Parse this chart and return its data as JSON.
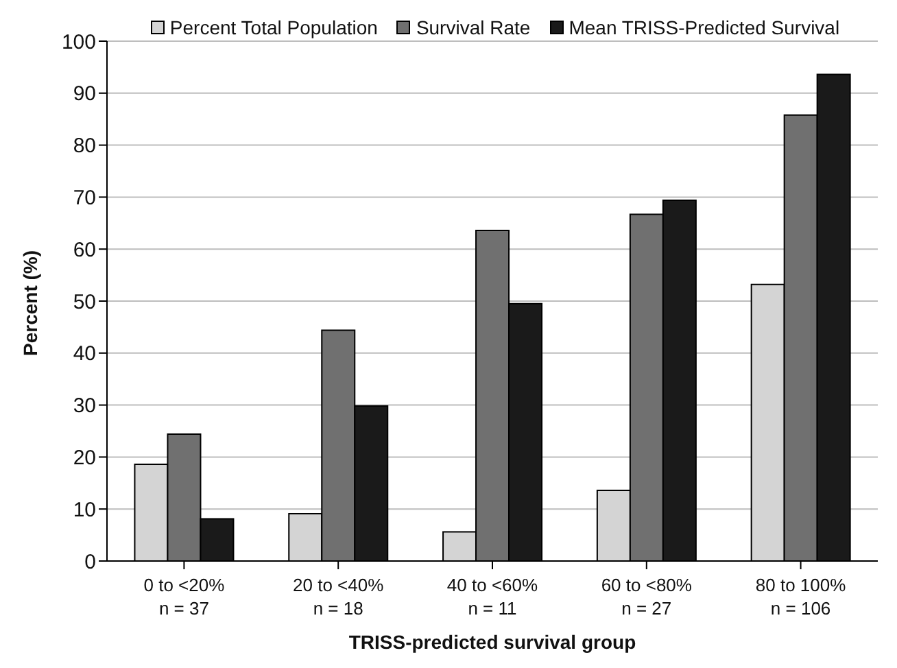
{
  "chart_data": {
    "type": "bar",
    "xlabel": "TRISS-predicted survival group",
    "ylabel": "Percent (%)",
    "categories": [
      "0 to <20%\nn = 37",
      "20 to <40%\nn = 18",
      "40 to <60%\nn = 11",
      "60 to <80%\nn = 27",
      "80 to 100%\nn = 106"
    ],
    "series": [
      {
        "name": "Percent Total Population",
        "color": "#d4d4d4",
        "values": [
          18.6,
          9.1,
          5.6,
          13.6,
          53.2
        ]
      },
      {
        "name": "Survival Rate",
        "color": "#707070",
        "values": [
          24.4,
          44.4,
          63.6,
          66.7,
          85.8
        ]
      },
      {
        "name": "Mean TRISS-Predicted Survival",
        "color": "#1a1a1a",
        "values": [
          8.1,
          29.8,
          49.5,
          69.4,
          93.6
        ]
      }
    ],
    "ylim": [
      0,
      100
    ],
    "yticks": [
      0,
      10,
      20,
      30,
      40,
      50,
      60,
      70,
      80,
      90,
      100
    ],
    "grid": "y",
    "legend": "top"
  }
}
